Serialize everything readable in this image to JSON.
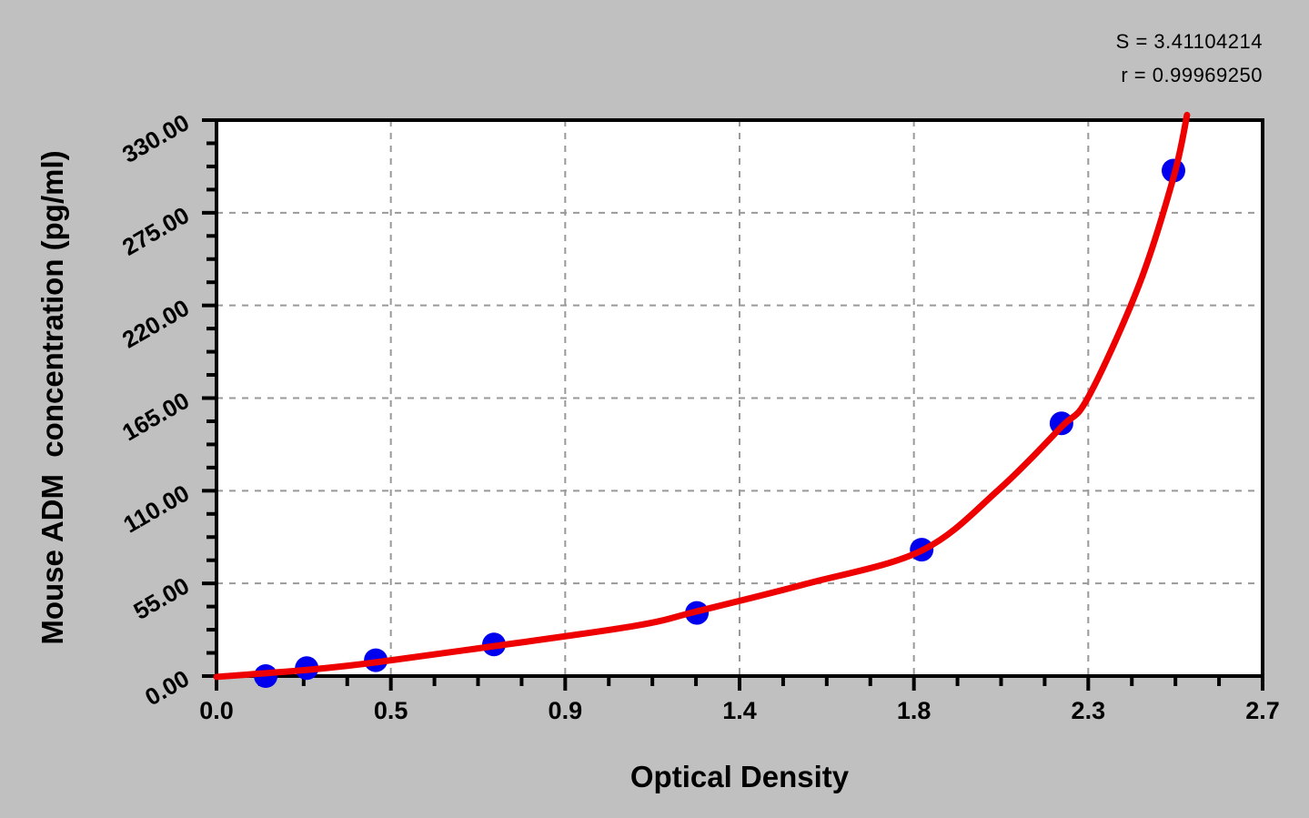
{
  "stats": {
    "s_line": "S = 3.41104214",
    "r_line": "r = 0.99969250"
  },
  "chart_data": {
    "type": "scatter",
    "title": "",
    "xlabel": "Optical Density",
    "ylabel": "Mouse ADM  concentration (pg/ml)",
    "xlim": [
      0,
      2.7
    ],
    "ylim": [
      0,
      330
    ],
    "x_ticks": [
      {
        "value": 0,
        "label": "0.0"
      },
      {
        "value": 0.45,
        "label": "0.5"
      },
      {
        "value": 0.9,
        "label": "0.9"
      },
      {
        "value": 1.35,
        "label": "1.4"
      },
      {
        "value": 1.8,
        "label": "1.8"
      },
      {
        "value": 2.25,
        "label": "2.3"
      },
      {
        "value": 2.7,
        "label": "2.7"
      }
    ],
    "y_ticks": [
      {
        "value": 0,
        "label": "0.00"
      },
      {
        "value": 55,
        "label": "55.00"
      },
      {
        "value": 110,
        "label": "110.00"
      },
      {
        "value": 165,
        "label": "165.00"
      },
      {
        "value": 220,
        "label": "220.00"
      },
      {
        "value": 275,
        "label": "275.00"
      },
      {
        "value": 330,
        "label": "330.00"
      }
    ],
    "minor_divisions": 4,
    "grid": {
      "show": true,
      "style": "dashed",
      "dash": [
        7,
        7
      ]
    },
    "legend": "none",
    "series": [
      {
        "name": "standard-points",
        "type": "scatter",
        "points": [
          {
            "od": 0.127,
            "conc": 0
          },
          {
            "od": 0.233,
            "conc": 4.69
          },
          {
            "od": 0.411,
            "conc": 9.38
          },
          {
            "od": 0.716,
            "conc": 18.75
          },
          {
            "od": 1.24,
            "conc": 37.5
          },
          {
            "od": 1.82,
            "conc": 75
          },
          {
            "od": 2.181,
            "conc": 150
          },
          {
            "od": 2.47,
            "conc": 300
          }
        ]
      },
      {
        "name": "fitted-curve",
        "type": "line",
        "samples": [
          [
            0.0,
            -0.5
          ],
          [
            0.24,
            3.8
          ],
          [
            0.41,
            8.1
          ],
          [
            0.72,
            17.9
          ],
          [
            1.08,
            29.8
          ],
          [
            1.24,
            38.4
          ],
          [
            1.52,
            54.6
          ],
          [
            1.82,
            74.5
          ],
          [
            2.02,
            110.9
          ],
          [
            2.18,
            147.7
          ],
          [
            2.25,
            165.5
          ],
          [
            2.38,
            231.5
          ],
          [
            2.47,
            295.9
          ],
          [
            2.505,
            333
          ]
        ]
      }
    ],
    "fit_stats": {
      "S": 3.41104214,
      "r": 0.9996925
    },
    "colors": {
      "page_bg": "#c0c0c0",
      "plot_bg": "#ffffff",
      "frame": "#000000",
      "grid": "#999999",
      "curve": "#ee0000",
      "marker": "#0000ee",
      "text": "#000000"
    }
  }
}
